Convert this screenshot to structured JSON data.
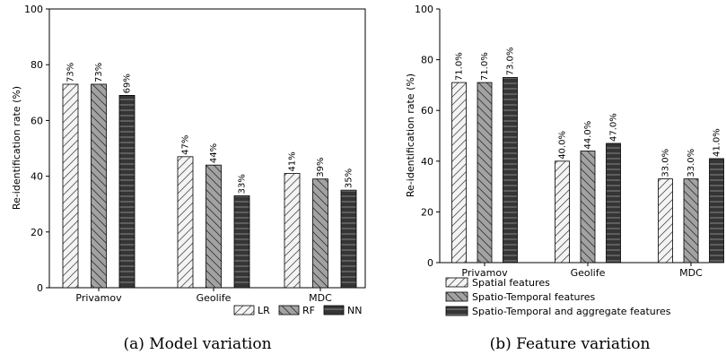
{
  "chart_data": [
    {
      "type": "bar",
      "caption": "(a) Model variation",
      "categories": [
        "Privamov",
        "Geolife",
        "MDC"
      ],
      "series": [
        {
          "name": "LR",
          "values": [
            73,
            47,
            41
          ],
          "labels": [
            "73%",
            "47%",
            "41%"
          ],
          "pattern": "diag",
          "fill": "#f4f4f4"
        },
        {
          "name": "RF",
          "values": [
            73,
            44,
            39
          ],
          "labels": [
            "73%",
            "44%",
            "39%"
          ],
          "pattern": "backdiag",
          "fill": "#a2a2a2"
        },
        {
          "name": "NN",
          "values": [
            69,
            33,
            35
          ],
          "labels": [
            "69%",
            "33%",
            "35%"
          ],
          "pattern": "horiz",
          "fill": "#353535"
        }
      ],
      "ylabel": "Re-identification rate (%)",
      "ylim": [
        0,
        100
      ],
      "yticks": [
        0,
        20,
        40,
        60,
        80,
        100
      ],
      "grid": false,
      "legend": "bottom-right, horizontal"
    },
    {
      "type": "bar",
      "caption": "(b) Feature variation",
      "categories": [
        "Privamov",
        "Geolife",
        "MDC"
      ],
      "series": [
        {
          "name": "Spatial features",
          "values": [
            71.0,
            40.0,
            33.0
          ],
          "labels": [
            "71.0%",
            "40.0%",
            "33.0%"
          ],
          "pattern": "diag",
          "fill": "#f4f4f4"
        },
        {
          "name": "Spatio-Temporal features",
          "values": [
            71.0,
            44.0,
            33.0
          ],
          "labels": [
            "71.0%",
            "44.0%",
            "33.0%"
          ],
          "pattern": "backdiag",
          "fill": "#a2a2a2"
        },
        {
          "name": "Spatio-Temporal and aggregate features",
          "values": [
            73.0,
            47.0,
            41.0
          ],
          "labels": [
            "73.0%",
            "47.0%",
            "41.0%"
          ],
          "pattern": "horiz",
          "fill": "#353535"
        }
      ],
      "ylabel": "Re-identification rate (%)",
      "ylim": [
        0,
        100
      ],
      "yticks": [
        0,
        20,
        40,
        60,
        80,
        100
      ],
      "grid": false,
      "legend": "below plot, vertical"
    }
  ]
}
